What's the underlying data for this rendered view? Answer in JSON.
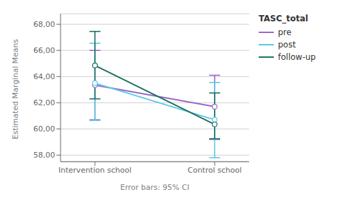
{
  "chart_data": {
    "type": "line",
    "categories": [
      "Intervention school",
      "Control school"
    ],
    "series": [
      {
        "name": "pre",
        "color": "#9966CC",
        "values": [
          63.35,
          61.7
        ],
        "ci_low": [
          60.7,
          59.2
        ],
        "ci_high": [
          66.0,
          64.1
        ]
      },
      {
        "name": "post",
        "color": "#5BC8E8",
        "values": [
          63.5,
          60.7
        ],
        "ci_low": [
          60.65,
          57.8
        ],
        "ci_high": [
          66.55,
          63.55
        ]
      },
      {
        "name": "follow-up",
        "color": "#1A7060",
        "values": [
          64.85,
          60.35
        ],
        "ci_low": [
          62.3,
          59.25
        ],
        "ci_high": [
          67.45,
          62.75
        ]
      }
    ],
    "ylabel": "Estimated Marginal Means",
    "xlabel": "Error bars: 95% CI",
    "legend_title": "TASC_total",
    "ylim": [
      57.5,
      68.8
    ],
    "yticks": [
      {
        "value": 58.0,
        "label": "58,00"
      },
      {
        "value": 60.0,
        "label": "60,00"
      },
      {
        "value": 62.0,
        "label": "62,00"
      },
      {
        "value": 64.0,
        "label": "64,00"
      },
      {
        "value": 66.0,
        "label": "66,00"
      },
      {
        "value": 68.0,
        "label": "68,00"
      }
    ],
    "grid": true,
    "legend": "right",
    "marker": "circle"
  }
}
